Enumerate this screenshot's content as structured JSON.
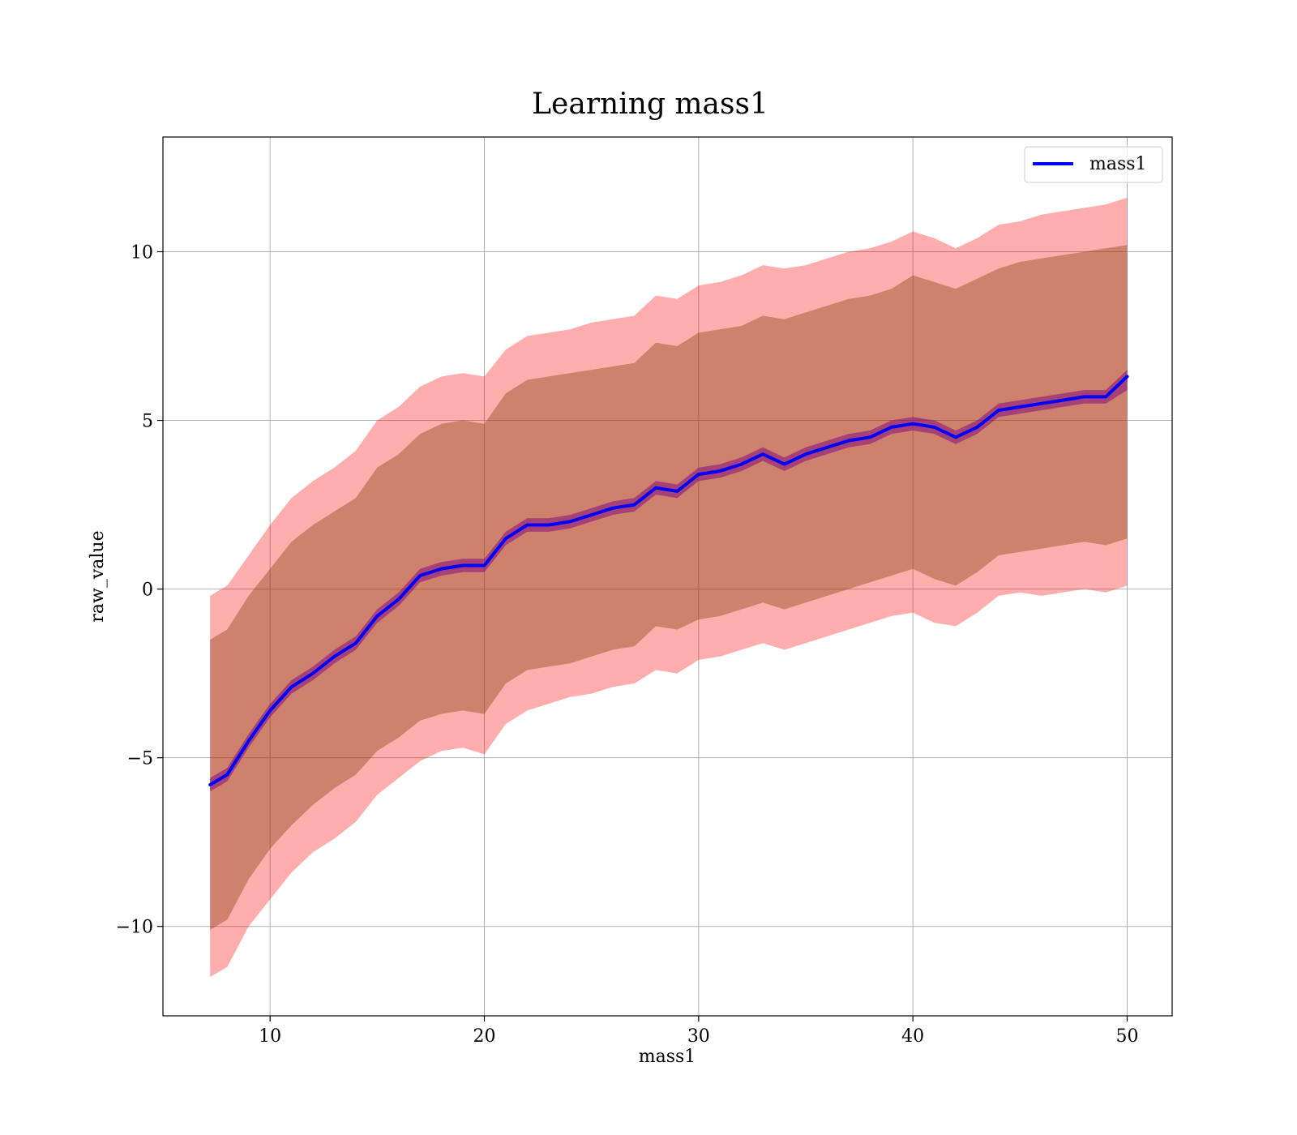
{
  "chart_data": {
    "type": "line",
    "title": "Learning mass1",
    "xlabel": "mass1",
    "ylabel": "raw_value",
    "xlim": [
      5.0,
      52.1
    ],
    "ylim": [
      -12.65,
      13.4
    ],
    "xticks": [
      10,
      20,
      30,
      40,
      50
    ],
    "yticks": [
      -10,
      -5,
      0,
      5,
      10
    ],
    "x_tick_labels": [
      "10",
      "20",
      "30",
      "40",
      "50"
    ],
    "y_tick_labels": [
      "−10",
      "−5",
      "0",
      "5",
      "10"
    ],
    "grid": true,
    "legend": {
      "position": "top-right",
      "entries": [
        "mass1"
      ]
    },
    "colors": {
      "line": "#0000ff",
      "outer_band": "#ff0000",
      "inner_band": "#8b4513",
      "narrow_band": "#800080"
    },
    "series": [
      {
        "name": "mass1",
        "x": [
          7.2,
          8,
          9,
          10,
          11,
          12,
          13,
          14,
          15,
          16,
          17,
          18,
          19,
          20,
          21,
          22,
          23,
          24,
          25,
          26,
          27,
          28,
          29,
          30,
          31,
          32,
          33,
          34,
          35,
          36,
          37,
          38,
          39,
          40,
          41,
          42,
          43,
          44,
          45,
          46,
          47,
          48,
          49,
          50
        ],
        "values": [
          -5.8,
          -5.5,
          -4.5,
          -3.6,
          -2.9,
          -2.5,
          -2.0,
          -1.6,
          -0.8,
          -0.3,
          0.4,
          0.6,
          0.7,
          0.7,
          1.5,
          1.9,
          1.9,
          2.0,
          2.2,
          2.4,
          2.5,
          3.0,
          2.9,
          3.4,
          3.5,
          3.7,
          4.0,
          3.7,
          4.0,
          4.2,
          4.4,
          4.5,
          4.8,
          4.9,
          4.8,
          4.5,
          4.8,
          5.3,
          5.4,
          5.5,
          5.6,
          5.7,
          5.7,
          6.3
        ]
      }
    ],
    "bands": [
      {
        "lower": [
          -11.5,
          -11.2,
          -10.0,
          -9.2,
          -8.4,
          -7.8,
          -7.4,
          -6.9,
          -6.1,
          -5.6,
          -5.1,
          -4.8,
          -4.7,
          -4.9,
          -4.0,
          -3.6,
          -3.4,
          -3.2,
          -3.1,
          -2.9,
          -2.8,
          -2.4,
          -2.5,
          -2.1,
          -2.0,
          -1.8,
          -1.6,
          -1.8,
          -1.6,
          -1.4,
          -1.2,
          -1.0,
          -0.8,
          -0.7,
          -1.0,
          -1.1,
          -0.7,
          -0.2,
          -0.1,
          -0.2,
          -0.1,
          0.0,
          -0.1,
          0.1
        ],
        "upper": [
          -0.2,
          0.1,
          1.0,
          1.9,
          2.7,
          3.2,
          3.6,
          4.1,
          5.0,
          5.4,
          6.0,
          6.3,
          6.4,
          6.3,
          7.1,
          7.5,
          7.6,
          7.7,
          7.9,
          8.0,
          8.1,
          8.7,
          8.6,
          9.0,
          9.1,
          9.3,
          9.6,
          9.5,
          9.6,
          9.8,
          10.0,
          10.1,
          10.3,
          10.6,
          10.4,
          10.1,
          10.4,
          10.8,
          10.9,
          11.1,
          11.2,
          11.3,
          11.4,
          11.6
        ]
      },
      {
        "lower": [
          -10.1,
          -9.8,
          -8.6,
          -7.7,
          -7.0,
          -6.4,
          -5.9,
          -5.5,
          -4.8,
          -4.4,
          -3.9,
          -3.7,
          -3.6,
          -3.7,
          -2.8,
          -2.4,
          -2.3,
          -2.2,
          -2.0,
          -1.8,
          -1.7,
          -1.1,
          -1.2,
          -0.9,
          -0.8,
          -0.6,
          -0.4,
          -0.6,
          -0.4,
          -0.2,
          0.0,
          0.2,
          0.4,
          0.6,
          0.3,
          0.1,
          0.5,
          1.0,
          1.1,
          1.2,
          1.3,
          1.4,
          1.3,
          1.5
        ],
        "upper": [
          -1.5,
          -1.2,
          -0.2,
          0.6,
          1.4,
          1.9,
          2.3,
          2.7,
          3.6,
          4.0,
          4.6,
          4.9,
          5.0,
          4.9,
          5.8,
          6.2,
          6.3,
          6.4,
          6.5,
          6.6,
          6.7,
          7.3,
          7.2,
          7.6,
          7.7,
          7.8,
          8.1,
          8.0,
          8.2,
          8.4,
          8.6,
          8.7,
          8.9,
          9.3,
          9.1,
          8.9,
          9.2,
          9.5,
          9.7,
          9.8,
          9.9,
          10.0,
          10.1,
          10.2
        ]
      },
      {
        "lower": [
          -6.0,
          -5.7,
          -4.7,
          -3.8,
          -3.1,
          -2.7,
          -2.2,
          -1.8,
          -1.0,
          -0.5,
          0.2,
          0.4,
          0.5,
          0.5,
          1.3,
          1.7,
          1.7,
          1.8,
          2.0,
          2.2,
          2.3,
          2.8,
          2.7,
          3.2,
          3.3,
          3.5,
          3.8,
          3.5,
          3.8,
          4.0,
          4.2,
          4.3,
          4.6,
          4.7,
          4.6,
          4.3,
          4.6,
          5.1,
          5.2,
          5.3,
          5.4,
          5.5,
          5.5,
          5.9
        ],
        "upper": [
          -5.6,
          -5.3,
          -4.3,
          -3.4,
          -2.7,
          -2.3,
          -1.8,
          -1.4,
          -0.6,
          -0.1,
          0.6,
          0.8,
          0.9,
          0.9,
          1.7,
          2.1,
          2.1,
          2.2,
          2.4,
          2.6,
          2.7,
          3.2,
          3.1,
          3.6,
          3.7,
          3.9,
          4.2,
          3.9,
          4.2,
          4.4,
          4.6,
          4.7,
          5.0,
          5.1,
          5.0,
          4.7,
          5.0,
          5.5,
          5.6,
          5.7,
          5.8,
          5.9,
          5.9,
          6.5
        ]
      }
    ]
  }
}
